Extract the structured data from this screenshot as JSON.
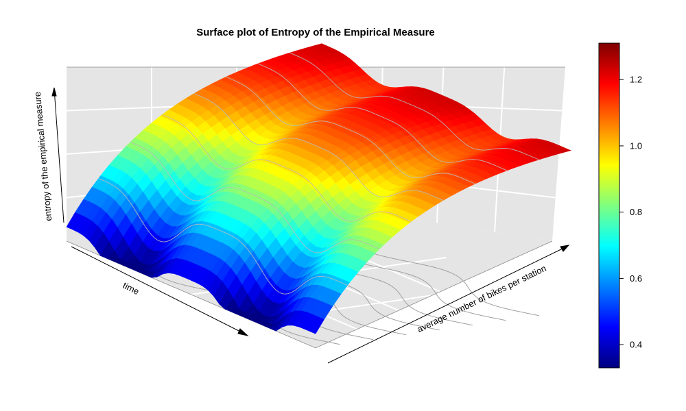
{
  "chart_data": {
    "type": "surface",
    "title": "Surface plot of Entropy of the Empirical Measure",
    "xlabel": "time",
    "ylabel": "average number of bikes per station",
    "zlabel": "entropy of the empirical measure",
    "colorbar": {
      "ticks": [
        0.4,
        0.6,
        0.8,
        1.0,
        1.2
      ],
      "tick_labels": [
        "0.4",
        "0.6",
        "0.8",
        "1.0",
        "1.2"
      ],
      "range": [
        0.33,
        1.31
      ],
      "palette": "jet"
    },
    "z_range": [
      0.33,
      1.31
    ],
    "description_of_surface": {
      "trend_along_bikes": "rises from about 0.4-0.7 at low bike counts to about 1.3 at high counts",
      "periodic_along_time": "two daily dips visible"
    },
    "background": "#e5e5e5",
    "grid": true
  }
}
